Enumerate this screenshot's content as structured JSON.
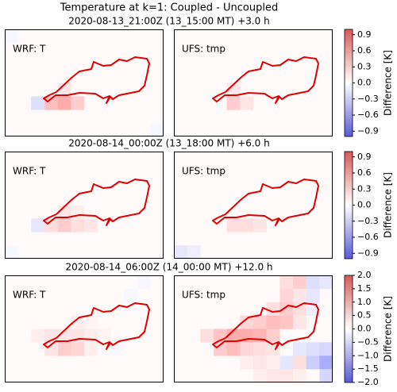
{
  "title": "Temperature at k=1: Coupled - Uncoupled",
  "rows": [
    {
      "subtitle": "2020-08-13_21:00Z  (13_15:00 MT) +3.0 h",
      "colorbar": {
        "label": "Difference [K]",
        "lim": [
          -1,
          1
        ],
        "ticks": [
          0.9,
          0.6,
          0.3,
          {
            "value": 0,
            "label": "0.0"
          },
          {
            "value": -0.3,
            "label": "−0.3"
          },
          {
            "value": -0.6,
            "label": "−0.6"
          },
          {
            "value": -0.9,
            "label": "−0.9"
          }
        ]
      }
    },
    {
      "subtitle": "2020-08-14_00:00Z  (13_18:00 MT) +6.0 h",
      "colorbar": {
        "label": "Difference [K]",
        "lim": [
          -1,
          1
        ],
        "ticks": [
          0.9,
          0.6,
          0.3,
          {
            "value": 0,
            "label": "0.0"
          },
          {
            "value": -0.3,
            "label": "−0.3"
          },
          {
            "value": -0.6,
            "label": "−0.6"
          },
          {
            "value": -0.9,
            "label": "−0.9"
          }
        ]
      }
    },
    {
      "subtitle": "2020-08-14_06:00Z  (14_00:00 MT) +12.0 h",
      "colorbar": {
        "label": "Difference [K]",
        "lim": [
          -2,
          2
        ],
        "ticks": [
          {
            "value": 2,
            "label": "2.0"
          },
          1.5,
          {
            "value": 1,
            "label": "1.0"
          },
          0.5,
          {
            "value": 0,
            "label": "0.0"
          },
          {
            "value": -0.5,
            "label": "−0.5"
          },
          {
            "value": -1,
            "label": "−1.0"
          },
          {
            "value": -1.5,
            "label": "−1.5"
          },
          {
            "value": -2,
            "label": "−2.0"
          }
        ]
      }
    }
  ],
  "chart_data": [
    {
      "type": "heatmap",
      "label": "WRF: T",
      "cells": [
        [
          3,
          5,
          0.4
        ],
        [
          4,
          5,
          0.5
        ],
        [
          5,
          5,
          0.3
        ],
        [
          4,
          4,
          0.15
        ],
        [
          2,
          5,
          -0.2
        ],
        [
          0,
          0,
          -0.05
        ],
        [
          11,
          7,
          -0.05
        ]
      ]
    },
    {
      "type": "heatmap",
      "label": "UFS: tmp",
      "cells": [
        [
          4,
          5,
          0.3
        ],
        [
          4,
          4,
          0.15
        ],
        [
          5,
          5,
          0.15
        ]
      ]
    },
    {
      "type": "heatmap",
      "label": "WRF: T",
      "cells": [
        [
          3,
          5,
          0.2
        ],
        [
          4,
          5,
          0.3
        ],
        [
          5,
          5,
          0.2
        ],
        [
          4,
          4,
          0.15
        ],
        [
          5,
          4,
          0.1
        ],
        [
          6,
          5,
          0.15
        ],
        [
          2,
          5,
          -0.15
        ],
        [
          0,
          7,
          -0.05
        ]
      ]
    },
    {
      "type": "heatmap",
      "label": "UFS: tmp",
      "cells": [
        [
          4,
          5,
          0.2
        ],
        [
          5,
          5,
          0.2
        ],
        [
          6,
          5,
          0.15
        ],
        [
          0,
          7,
          -0.15
        ],
        [
          1,
          7,
          -0.1
        ]
      ]
    },
    {
      "type": "heatmap",
      "label": "WRF: T",
      "cells": [
        [
          4,
          4,
          0.3
        ],
        [
          5,
          4,
          0.3
        ],
        [
          4,
          5,
          0.6
        ],
        [
          5,
          5,
          0.5
        ],
        [
          3,
          5,
          0.3
        ],
        [
          5,
          3,
          0.2
        ],
        [
          6,
          3,
          0.15
        ],
        [
          6,
          4,
          0.2
        ],
        [
          6,
          5,
          0.2
        ],
        [
          2,
          4,
          0.2
        ],
        [
          3,
          4,
          0.3
        ],
        [
          7,
          4,
          0.15
        ],
        [
          9,
          1,
          -0.1
        ],
        [
          10,
          0,
          -0.1
        ],
        [
          8,
          5,
          -0.1
        ]
      ]
    },
    {
      "type": "heatmap",
      "label": "UFS: tmp",
      "cells": [
        [
          8,
          0,
          0.4
        ],
        [
          9,
          0,
          0.6
        ],
        [
          10,
          0,
          -0.4
        ],
        [
          11,
          0,
          -0.3
        ],
        [
          8,
          1,
          0.5
        ],
        [
          9,
          1,
          0.3
        ],
        [
          10,
          1,
          -0.3
        ],
        [
          7,
          2,
          0.4
        ],
        [
          8,
          2,
          0.6
        ],
        [
          9,
          2,
          0.4
        ],
        [
          10,
          2,
          -0.2
        ],
        [
          5,
          3,
          0.5
        ],
        [
          6,
          3,
          0.6
        ],
        [
          7,
          3,
          0.8
        ],
        [
          8,
          3,
          0.7
        ],
        [
          9,
          3,
          0.3
        ],
        [
          2,
          4,
          0.4
        ],
        [
          3,
          4,
          0.7
        ],
        [
          4,
          4,
          1.0
        ],
        [
          5,
          4,
          1.0
        ],
        [
          6,
          4,
          0.9
        ],
        [
          7,
          4,
          0.6
        ],
        [
          3,
          5,
          0.6
        ],
        [
          4,
          5,
          0.8
        ],
        [
          5,
          5,
          0.5
        ],
        [
          6,
          5,
          0.4
        ],
        [
          7,
          5,
          0.3
        ],
        [
          9,
          5,
          -0.3
        ],
        [
          10,
          5,
          -0.4
        ],
        [
          11,
          5,
          -0.5
        ],
        [
          5,
          6,
          0.2
        ],
        [
          6,
          6,
          0.3
        ],
        [
          7,
          6,
          0.2
        ],
        [
          8,
          6,
          -0.3
        ],
        [
          9,
          6,
          0.4
        ],
        [
          10,
          6,
          -0.6
        ],
        [
          11,
          6,
          -1.0
        ],
        [
          6,
          7,
          0.2
        ],
        [
          7,
          7,
          0.3
        ],
        [
          8,
          7,
          0.3
        ],
        [
          9,
          7,
          0.2
        ],
        [
          11,
          7,
          -0.5
        ]
      ]
    }
  ]
}
